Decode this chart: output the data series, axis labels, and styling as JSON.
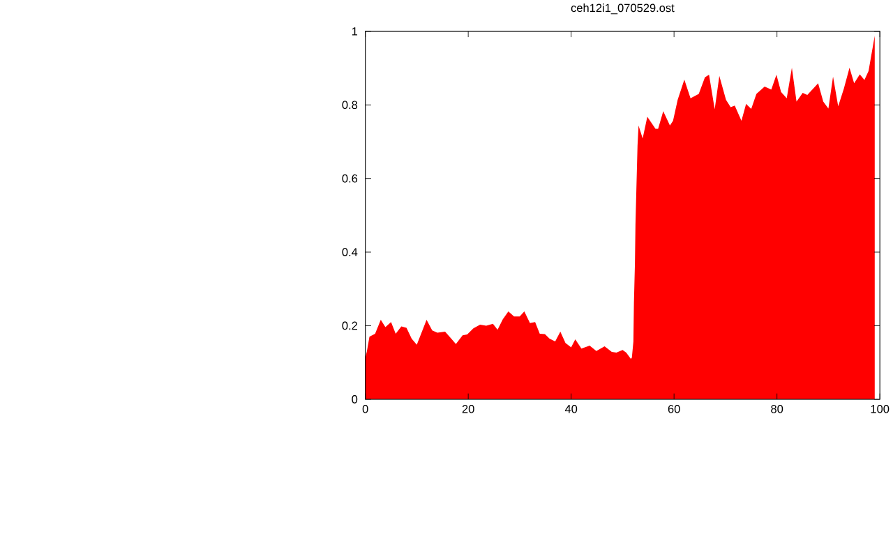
{
  "chart_data": {
    "type": "area",
    "title": "ceh12i1_070529.ost",
    "color": "#ff0000",
    "x": [
      0,
      0.3,
      0.8,
      1.9,
      3,
      3.9,
      5,
      5.9,
      7,
      8,
      9,
      10,
      11,
      11.9,
      13,
      14,
      15.5,
      16.7,
      17.6,
      18.9,
      19.8,
      21,
      22.3,
      23.5,
      24.8,
      25.7,
      26.7,
      27.8,
      28.9,
      30,
      30.9,
      32,
      33,
      33.9,
      34.9,
      35.8,
      36.9,
      37.9,
      38.9,
      40,
      40.8,
      42,
      43.6,
      44.9,
      46.5,
      47.9,
      48.8,
      50,
      50.7,
      51.6,
      51.8,
      52.1,
      52.2,
      52.4,
      52.5,
      52.7,
      52.9,
      53.1,
      53.9,
      54.8,
      56.4,
      56.9,
      57.9,
      59.2,
      59.8,
      60.7,
      62,
      63.2,
      64.8,
      66,
      66.8,
      67.9,
      68.8,
      70.1,
      71,
      71.8,
      73.1,
      74,
      75,
      76,
      77.6,
      78.9,
      79.9,
      80.8,
      81.9,
      82.9,
      83.8,
      85,
      85.9,
      88,
      89,
      90,
      90.9,
      91.9,
      93,
      94.1,
      95,
      96.1,
      97,
      97.8,
      99
    ],
    "values": [
      0.113,
      0.13,
      0.17,
      0.178,
      0.216,
      0.196,
      0.21,
      0.178,
      0.198,
      0.194,
      0.165,
      0.148,
      0.184,
      0.216,
      0.187,
      0.181,
      0.184,
      0.165,
      0.15,
      0.174,
      0.176,
      0.193,
      0.203,
      0.2,
      0.205,
      0.189,
      0.217,
      0.239,
      0.225,
      0.225,
      0.239,
      0.207,
      0.21,
      0.178,
      0.177,
      0.165,
      0.157,
      0.184,
      0.153,
      0.141,
      0.163,
      0.138,
      0.146,
      0.131,
      0.144,
      0.129,
      0.127,
      0.134,
      0.127,
      0.11,
      0.113,
      0.157,
      0.261,
      0.37,
      0.474,
      0.583,
      0.689,
      0.744,
      0.709,
      0.768,
      0.735,
      0.735,
      0.783,
      0.744,
      0.757,
      0.814,
      0.869,
      0.818,
      0.83,
      0.875,
      0.882,
      0.788,
      0.879,
      0.814,
      0.794,
      0.798,
      0.757,
      0.803,
      0.789,
      0.83,
      0.85,
      0.842,
      0.882,
      0.835,
      0.818,
      0.901,
      0.809,
      0.833,
      0.827,
      0.859,
      0.809,
      0.79,
      0.877,
      0.796,
      0.844,
      0.901,
      0.859,
      0.883,
      0.868,
      0.892,
      0.988
    ],
    "xlim": [
      0,
      100
    ],
    "ylim": [
      0,
      1
    ],
    "xticks": [
      0,
      20,
      40,
      60,
      80,
      100
    ],
    "yticks": [
      0,
      0.2,
      0.4,
      0.6,
      0.8,
      1
    ]
  }
}
